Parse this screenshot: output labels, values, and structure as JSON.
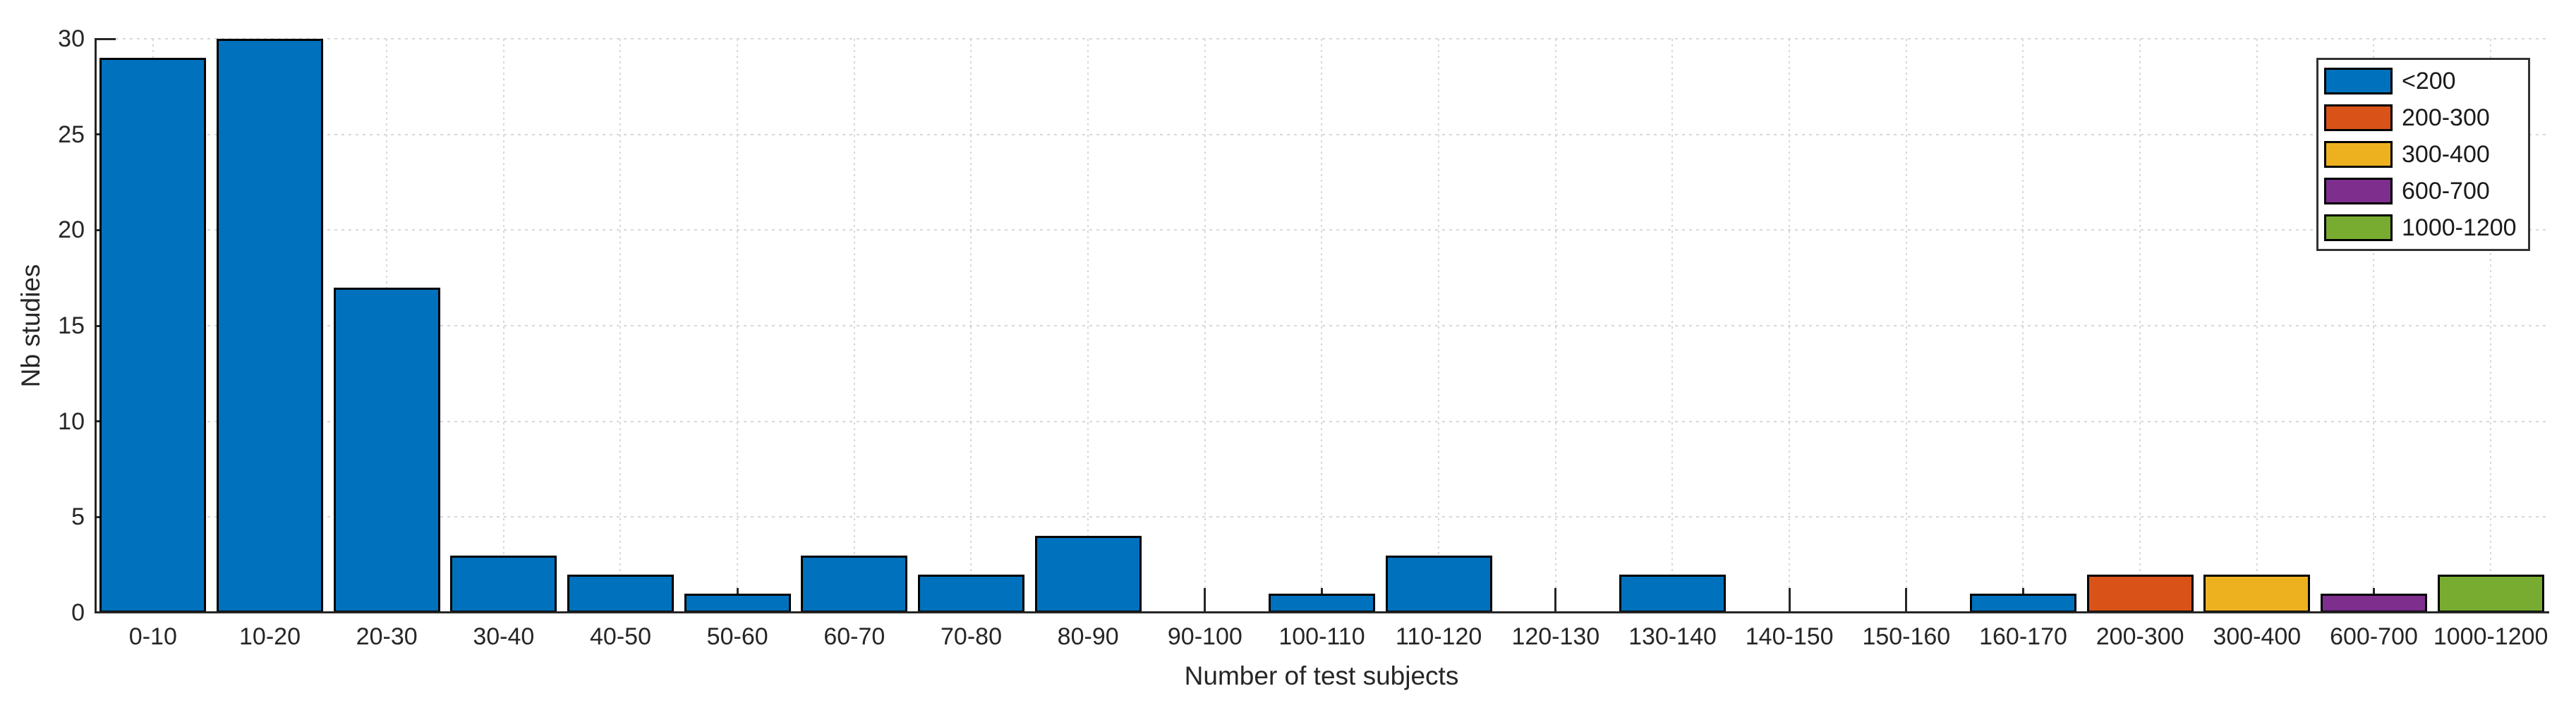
{
  "chart_data": {
    "type": "bar",
    "title": "",
    "xlabel": "Number of test subjects",
    "ylabel": "Nb studies",
    "ylim": [
      0,
      30
    ],
    "yticks": [
      0,
      5,
      10,
      15,
      20,
      25,
      30
    ],
    "grid": true,
    "legend_position": "top-right-inside",
    "categories": [
      "0-10",
      "10-20",
      "20-30",
      "30-40",
      "40-50",
      "50-60",
      "60-70",
      "70-80",
      "80-90",
      "90-100",
      "100-110",
      "110-120",
      "120-130",
      "130-140",
      "140-150",
      "150-160",
      "160-170",
      "200-300",
      "300-400",
      "600-700",
      "1000-1200"
    ],
    "values": [
      29,
      30,
      17,
      3,
      2,
      1,
      3,
      2,
      4,
      0,
      1,
      3,
      0,
      2,
      0,
      0,
      1,
      2,
      2,
      1,
      2
    ],
    "bar_group": [
      0,
      0,
      0,
      0,
      0,
      0,
      0,
      0,
      0,
      0,
      0,
      0,
      0,
      0,
      0,
      0,
      0,
      1,
      2,
      3,
      4
    ],
    "legend": [
      {
        "label": "<200",
        "color": "#0072BD"
      },
      {
        "label": "200-300",
        "color": "#D95319"
      },
      {
        "label": "300-400",
        "color": "#EDB120"
      },
      {
        "label": "600-700",
        "color": "#7E2F8E"
      },
      {
        "label": "1000-1200",
        "color": "#77AC30"
      }
    ]
  }
}
